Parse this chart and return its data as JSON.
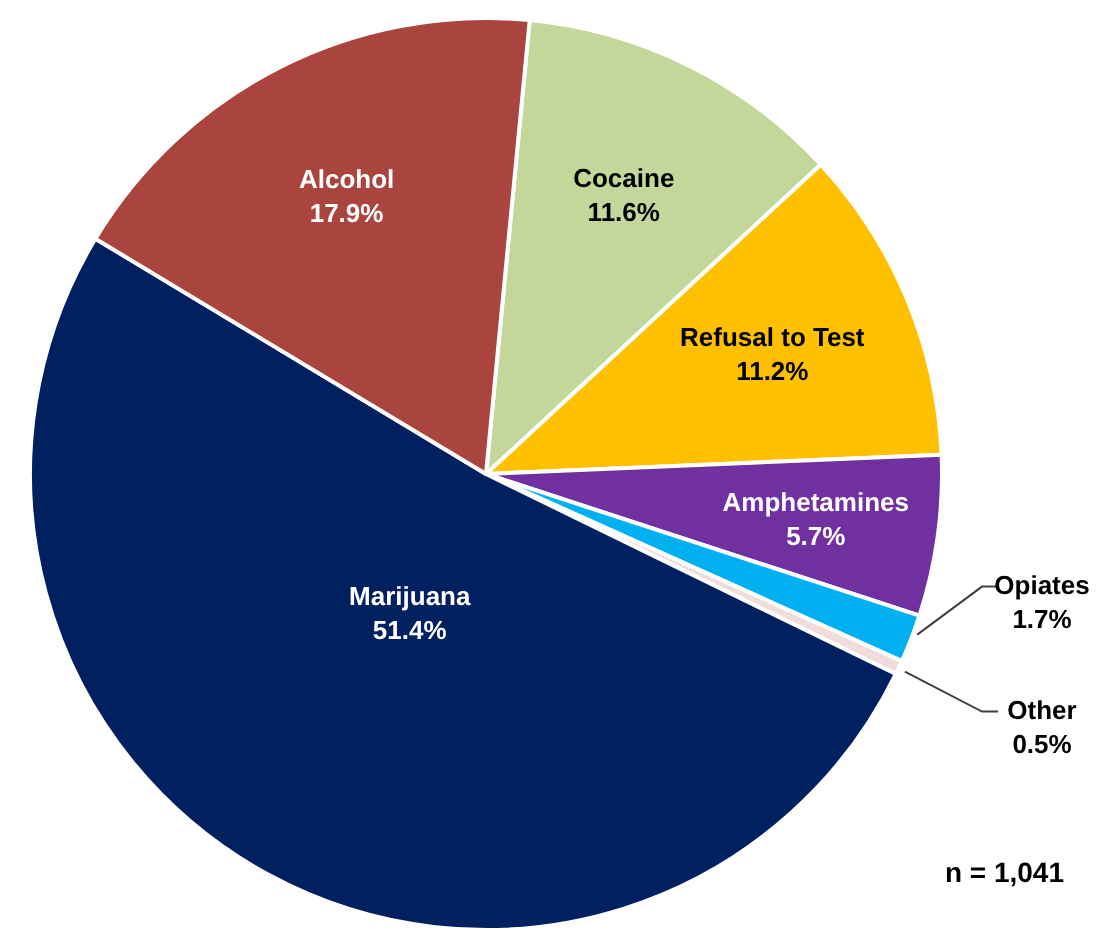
{
  "chart_data": {
    "type": "pie",
    "categories": [
      "Cocaine",
      "Refusal to Test",
      "Amphetamines",
      "Opiates",
      "Other",
      "Marijuana",
      "Alcohol"
    ],
    "values": [
      11.6,
      11.2,
      5.7,
      1.7,
      0.5,
      51.4,
      17.9
    ],
    "value_labels": [
      "11.6%",
      "11.2%",
      "5.7%",
      "1.7%",
      "0.5%",
      "51.4%",
      "17.9%"
    ],
    "colors": [
      "#c4d79b",
      "#ffc000",
      "#7030a0",
      "#00b0f0",
      "#f2dcdb",
      "#002060",
      "#a9443f"
    ],
    "legend": false,
    "annotations": [
      "n = 1,041"
    ]
  }
}
